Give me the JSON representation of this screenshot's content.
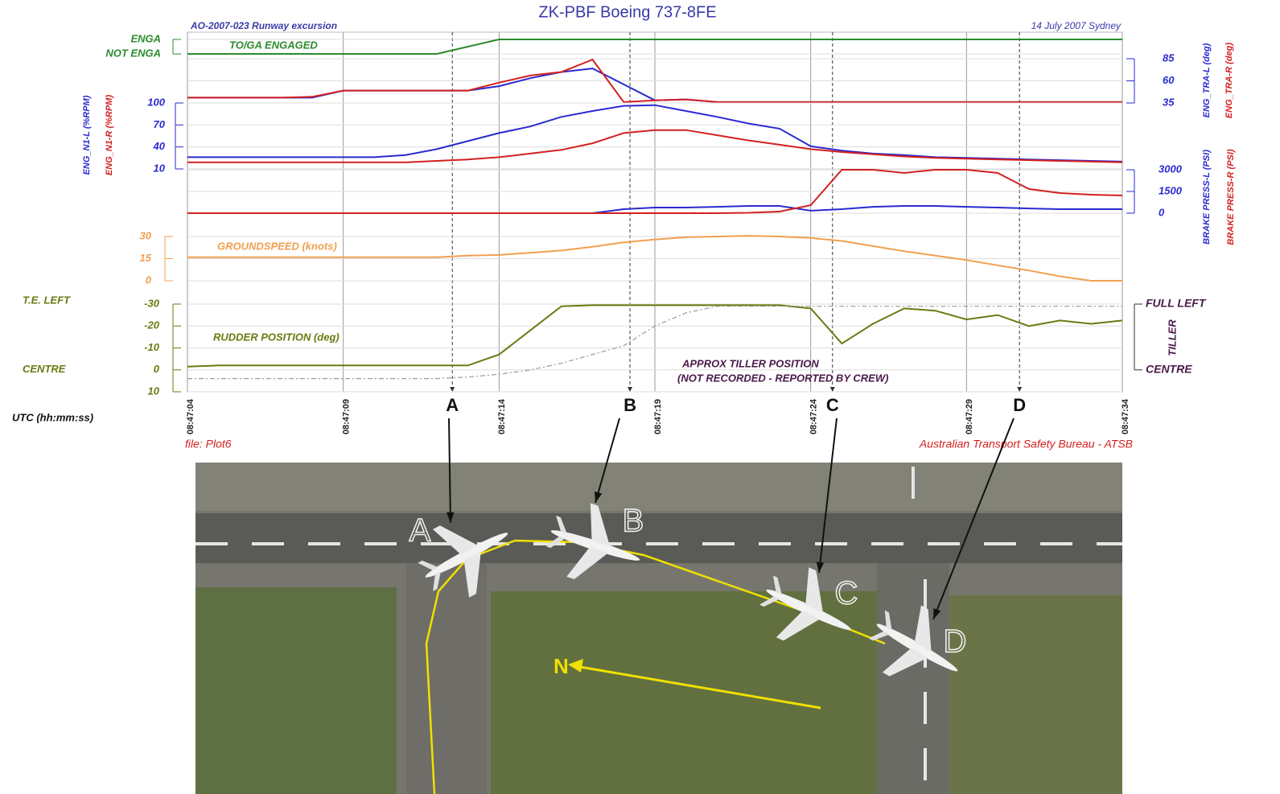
{
  "chart_data": {
    "type": "line",
    "title": "ZK-PBF Boeing 737-8FE",
    "subtitle_left": "AO-2007-023 Runway excursion",
    "subtitle_right": "14 July 2007 Sydney",
    "footer_left": "file: Plot6",
    "footer_right": "Australian Transport Safety Bureau - ATSB",
    "x_label": "UTC (hh:mm:ss)",
    "x": [
      "08:47:04",
      "08:47:05",
      "08:47:06",
      "08:47:07",
      "08:47:08",
      "08:47:09",
      "08:47:10",
      "08:47:11",
      "08:47:12",
      "08:47:13",
      "08:47:14",
      "08:47:15",
      "08:47:16",
      "08:47:17",
      "08:47:18",
      "08:47:19",
      "08:47:20",
      "08:47:21",
      "08:47:22",
      "08:47:23",
      "08:47:24",
      "08:47:25",
      "08:47:26",
      "08:47:27",
      "08:47:28",
      "08:47:29",
      "08:47:30",
      "08:47:31",
      "08:47:32",
      "08:47:33",
      "08:47:34"
    ],
    "xlim": [
      "08:47:04",
      "08:47:34"
    ],
    "xticks": [
      "08:47:04",
      "08:47:09",
      "08:47:14",
      "08:47:19",
      "08:47:24",
      "08:47:29",
      "08:47:34"
    ],
    "events": [
      {
        "label": "A",
        "x": "08:47:12.5"
      },
      {
        "label": "B",
        "x": "08:47:18.2"
      },
      {
        "label": "C",
        "x": "08:47:24.7"
      },
      {
        "label": "D",
        "x": "08:47:30.7"
      }
    ],
    "north": "N",
    "panels": [
      {
        "ylim": [
          0,
          1
        ],
        "yticks": [
          {
            "value": 0,
            "label": "NOT ENGA"
          },
          {
            "value": 1,
            "label": "ENGA"
          }
        ],
        "series": [
          {
            "name": "TO/GA ENGAGED",
            "color": "#2e8b2e",
            "values": [
              0,
              0,
              0,
              0,
              0,
              0,
              0,
              0,
              0,
              0.5,
              1,
              1,
              1,
              1,
              1,
              1,
              1,
              1,
              1,
              1,
              1,
              1,
              1,
              1,
              1,
              1,
              1,
              1,
              1,
              1,
              1
            ]
          }
        ]
      },
      {
        "ylim": [
          35,
          85
        ],
        "yticks": [
          35,
          60,
          85
        ],
        "series": [
          {
            "name": "ENG_TRA-L (deg)",
            "color": "#2a2ad0",
            "values": [
              41,
              41,
              41,
              41,
              41,
              49,
              49,
              49,
              49,
              49,
              54,
              63,
              70,
              74,
              56,
              38,
              39,
              36,
              36,
              36,
              36,
              36,
              36,
              36,
              36,
              36,
              36,
              36,
              36,
              36,
              36
            ]
          },
          {
            "name": "ENG_TRA-R (deg)",
            "color": "#d42020",
            "values": [
              41,
              41,
              41,
              41,
              42,
              49,
              49,
              49,
              49,
              49,
              58,
              66,
              70,
              84,
              36,
              38,
              39,
              36,
              36,
              36,
              36,
              36,
              36,
              36,
              36,
              36,
              36,
              36,
              36,
              36,
              36
            ]
          }
        ]
      },
      {
        "ylim": [
          10,
          100
        ],
        "yticks": [
          10,
          40,
          70,
          100
        ],
        "series": [
          {
            "name": "ENG_N1-L (%RPM)",
            "color": "#2a2ad0",
            "values": [
              26,
              26,
              26,
              26,
              26,
              26,
              26,
              29,
              37,
              48,
              59,
              68,
              81,
              89,
              96,
              97,
              89,
              81,
              72,
              65,
              41,
              35,
              31,
              29,
              26,
              25,
              24,
              23,
              22,
              21,
              20
            ]
          },
          {
            "name": "ENG_N1-R (%RPM)",
            "color": "#d42020",
            "values": [
              19,
              19,
              19,
              19,
              19,
              19,
              19,
              19,
              21,
              23,
              26,
              31,
              36,
              45,
              59,
              63,
              63,
              56,
              49,
              43,
              37,
              33,
              30,
              27,
              25,
              24,
              23,
              22,
              21,
              20,
              19
            ]
          }
        ]
      },
      {
        "ylim": [
          0,
          3000
        ],
        "yticks": [
          0,
          1500,
          3000
        ],
        "series": [
          {
            "name": "BRAKE PRESS-L (PSI)",
            "color": "#2a2ad0",
            "values": [
              0,
              0,
              0,
              0,
              0,
              0,
              0,
              0,
              0,
              0,
              0,
              0,
              0,
              0,
              280,
              390,
              390,
              440,
              500,
              500,
              170,
              280,
              440,
              500,
              500,
              440,
              390,
              330,
              280,
              280,
              280
            ]
          },
          {
            "name": "BRAKE PRESS-R (PSI)",
            "color": "#d42020",
            "values": [
              0,
              0,
              0,
              0,
              0,
              0,
              0,
              0,
              0,
              0,
              0,
              0,
              0,
              0,
              0,
              0,
              0,
              0,
              30,
              110,
              550,
              3000,
              3000,
              2780,
              3000,
              3000,
              2780,
              1670,
              1390,
              1280,
              1220
            ]
          }
        ]
      },
      {
        "ylim": [
          0,
          30
        ],
        "yticks": [
          0,
          15,
          30
        ],
        "series": [
          {
            "name": "GROUNDSPEED (knots)",
            "color": "#f0a050",
            "values": [
              16,
              16,
              16,
              16,
              16,
              16,
              16,
              16,
              16,
              17,
              17.5,
              19,
              20.5,
              23,
              26,
              28,
              29.5,
              30,
              30.5,
              30,
              29,
              27,
              23.5,
              20,
              17,
              14,
              10.5,
              7,
              3,
              0,
              0
            ]
          }
        ]
      },
      {
        "ylim": [
          10,
          -30
        ],
        "yticks": [
          10,
          0,
          -10,
          -20,
          -30
        ],
        "left_labels": [
          {
            "value": -30,
            "label": "T.E. LEFT"
          },
          {
            "value": 0,
            "label": "CENTRE"
          }
        ],
        "right_labels": [
          {
            "value": -30,
            "label": "FULL LEFT"
          },
          {
            "value": 0,
            "label": "CENTRE"
          }
        ],
        "right_axis_label": "TILLER",
        "note": "(NOT RECORDED -  REPORTED BY CREW)",
        "series": [
          {
            "name": "RUDDER POSITION (deg)",
            "color": "#6b7a10",
            "values": [
              -1.5,
              -2,
              -2,
              -2,
              -2,
              -2,
              -2,
              -2,
              -2,
              -2,
              -7,
              -18,
              -29,
              -29.5,
              -29.5,
              -29.5,
              -29.5,
              -29.5,
              -29.5,
              -29.5,
              -28,
              -12,
              -21,
              -28,
              -27,
              -23,
              -25,
              -20,
              -22.5,
              -21,
              -22.5
            ]
          },
          {
            "name": "APPROX TILLER POSITION",
            "color": "#9a9a9a",
            "dashed": true,
            "values": [
              4,
              4,
              4,
              4,
              4,
              4,
              4,
              4,
              4,
              3.3,
              2,
              0,
              -3,
              -7,
              -11,
              -20,
              -26,
              -29,
              -29,
              -29,
              -29,
              -29,
              -29,
              -29,
              -29,
              -29,
              -29,
              -29,
              -29,
              -29,
              -29
            ]
          }
        ]
      }
    ]
  }
}
